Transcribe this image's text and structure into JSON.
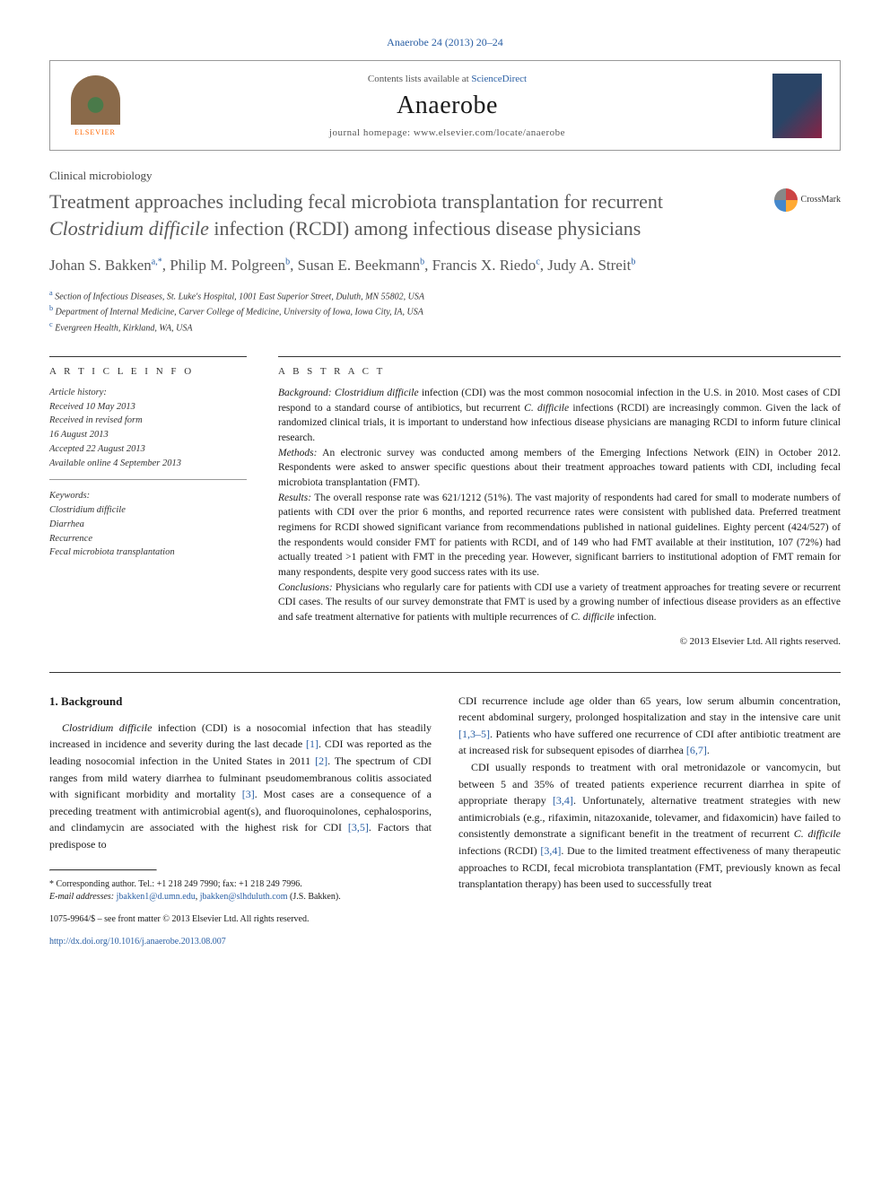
{
  "citation": "Anaerobe 24 (2013) 20–24",
  "header": {
    "contents_prefix": "Contents lists available at ",
    "contents_link": "ScienceDirect",
    "journal": "Anaerobe",
    "homepage_prefix": "journal homepage: ",
    "homepage_url": "www.elsevier.com/locate/anaerobe",
    "publisher": "ELSEVIER"
  },
  "section_tag": "Clinical microbiology",
  "title_pre": "Treatment approaches including fecal microbiota transplantation for recurrent ",
  "title_em": "Clostridium difficile",
  "title_post": " infection (RCDI) among infectious disease physicians",
  "crossmark": "CrossMark",
  "authors": [
    {
      "name": "Johan S. Bakken",
      "sup": "a,*"
    },
    {
      "name": "Philip M. Polgreen",
      "sup": "b"
    },
    {
      "name": "Susan E. Beekmann",
      "sup": "b"
    },
    {
      "name": "Francis X. Riedo",
      "sup": "c"
    },
    {
      "name": "Judy A. Streit",
      "sup": "b"
    }
  ],
  "affiliations": [
    {
      "sup": "a",
      "text": "Section of Infectious Diseases, St. Luke's Hospital, 1001 East Superior Street, Duluth, MN 55802, USA"
    },
    {
      "sup": "b",
      "text": "Department of Internal Medicine, Carver College of Medicine, University of Iowa, Iowa City, IA, USA"
    },
    {
      "sup": "c",
      "text": "Evergreen Health, Kirkland, WA, USA"
    }
  ],
  "info_heading": "A R T I C L E   I N F O",
  "abstract_heading": "A B S T R A C T",
  "history_label": "Article history:",
  "history": {
    "received": "Received 10 May 2013",
    "revised1": "Received in revised form",
    "revised2": "16 August 2013",
    "accepted": "Accepted 22 August 2013",
    "online": "Available online 4 September 2013"
  },
  "keywords_label": "Keywords:",
  "keywords": [
    "Clostridium difficile",
    "Diarrhea",
    "Recurrence",
    "Fecal microbiota transplantation"
  ],
  "abstract": {
    "background_label": "Background:",
    "background": " Clostridium difficile infection (CDI) was the most common nosocomial infection in the U.S. in 2010. Most cases of CDI respond to a standard course of antibiotics, but recurrent C. difficile infections (RCDI) are increasingly common. Given the lack of randomized clinical trials, it is important to understand how infectious disease physicians are managing RCDI to inform future clinical research.",
    "methods_label": "Methods:",
    "methods": " An electronic survey was conducted among members of the Emerging Infections Network (EIN) in October 2012. Respondents were asked to answer specific questions about their treatment approaches toward patients with CDI, including fecal microbiota transplantation (FMT).",
    "results_label": "Results:",
    "results": " The overall response rate was 621/1212 (51%). The vast majority of respondents had cared for small to moderate numbers of patients with CDI over the prior 6 months, and reported recurrence rates were consistent with published data. Preferred treatment regimens for RCDI showed significant variance from recommendations published in national guidelines. Eighty percent (424/527) of the respondents would consider FMT for patients with RCDI, and of 149 who had FMT available at their institution, 107 (72%) had actually treated >1 patient with FMT in the preceding year. However, significant barriers to institutional adoption of FMT remain for many respondents, despite very good success rates with its use.",
    "conclusions_label": "Conclusions:",
    "conclusions": " Physicians who regularly care for patients with CDI use a variety of treatment approaches for treating severe or recurrent CDI cases. The results of our survey demonstrate that FMT is used by a growing number of infectious disease providers as an effective and safe treatment alternative for patients with multiple recurrences of C. difficile infection."
  },
  "copyright": "© 2013 Elsevier Ltd. All rights reserved.",
  "body": {
    "heading": "1. Background",
    "p1_pre": "Clostridium difficile",
    "p1": " infection (CDI) is a nosocomial infection that has steadily increased in incidence and severity during the last decade ",
    "p1_ref1": "[1]",
    "p1_b": ". CDI was reported as the leading nosocomial infection in the United States in 2011 ",
    "p1_ref2": "[2]",
    "p1_c": ". The spectrum of CDI ranges from mild watery diarrhea to fulminant pseudomembranous colitis associated with significant morbidity and mortality ",
    "p1_ref3": "[3]",
    "p1_d": ". Most cases are a consequence of a preceding treatment with antimicrobial agent(s), and fluoroquinolones, cephalosporins, and clindamycin are associated with the highest risk for CDI ",
    "p1_ref4": "[3,5]",
    "p1_e": ". Factors that predispose to",
    "p2_a": "CDI recurrence include age older than 65 years, low serum albumin concentration, recent abdominal surgery, prolonged hospitalization and stay in the intensive care unit ",
    "p2_ref1": "[1,3–5]",
    "p2_b": ". Patients who have suffered one recurrence of CDI after antibiotic treatment are at increased risk for subsequent episodes of diarrhea ",
    "p2_ref2": "[6,7]",
    "p2_c": ".",
    "p3_a": "CDI usually responds to treatment with oral metronidazole or vancomycin, but between 5 and 35% of treated patients experience recurrent diarrhea in spite of appropriate therapy ",
    "p3_ref1": "[3,4]",
    "p3_b": ". Unfortunately, alternative treatment strategies with new antimicrobials (e.g., rifaximin, nitazoxanide, tolevamer, and fidaxomicin) have failed to consistently demonstrate a significant benefit in the treatment of recurrent ",
    "p3_em": "C. difficile",
    "p3_c": " infections (RCDI) ",
    "p3_ref2": "[3,4]",
    "p3_d": ". Due to the limited treatment effectiveness of many therapeutic approaches to RCDI, fecal microbiota transplantation (FMT, previously known as fecal transplantation therapy) has been used to successfully treat"
  },
  "footnote": {
    "corr": "* Corresponding author. Tel.: +1 218 249 7990; fax: +1 218 249 7996.",
    "email_label": "E-mail addresses: ",
    "email1": "jbakken1@d.umn.edu",
    "email_sep": ", ",
    "email2": "jbakken@slhduluth.com",
    "email_post": " (J.S. Bakken)."
  },
  "bottom": {
    "issn": "1075-9964/$ – see front matter © 2013 Elsevier Ltd. All rights reserved.",
    "doi": "http://dx.doi.org/10.1016/j.anaerobe.2013.08.007"
  }
}
